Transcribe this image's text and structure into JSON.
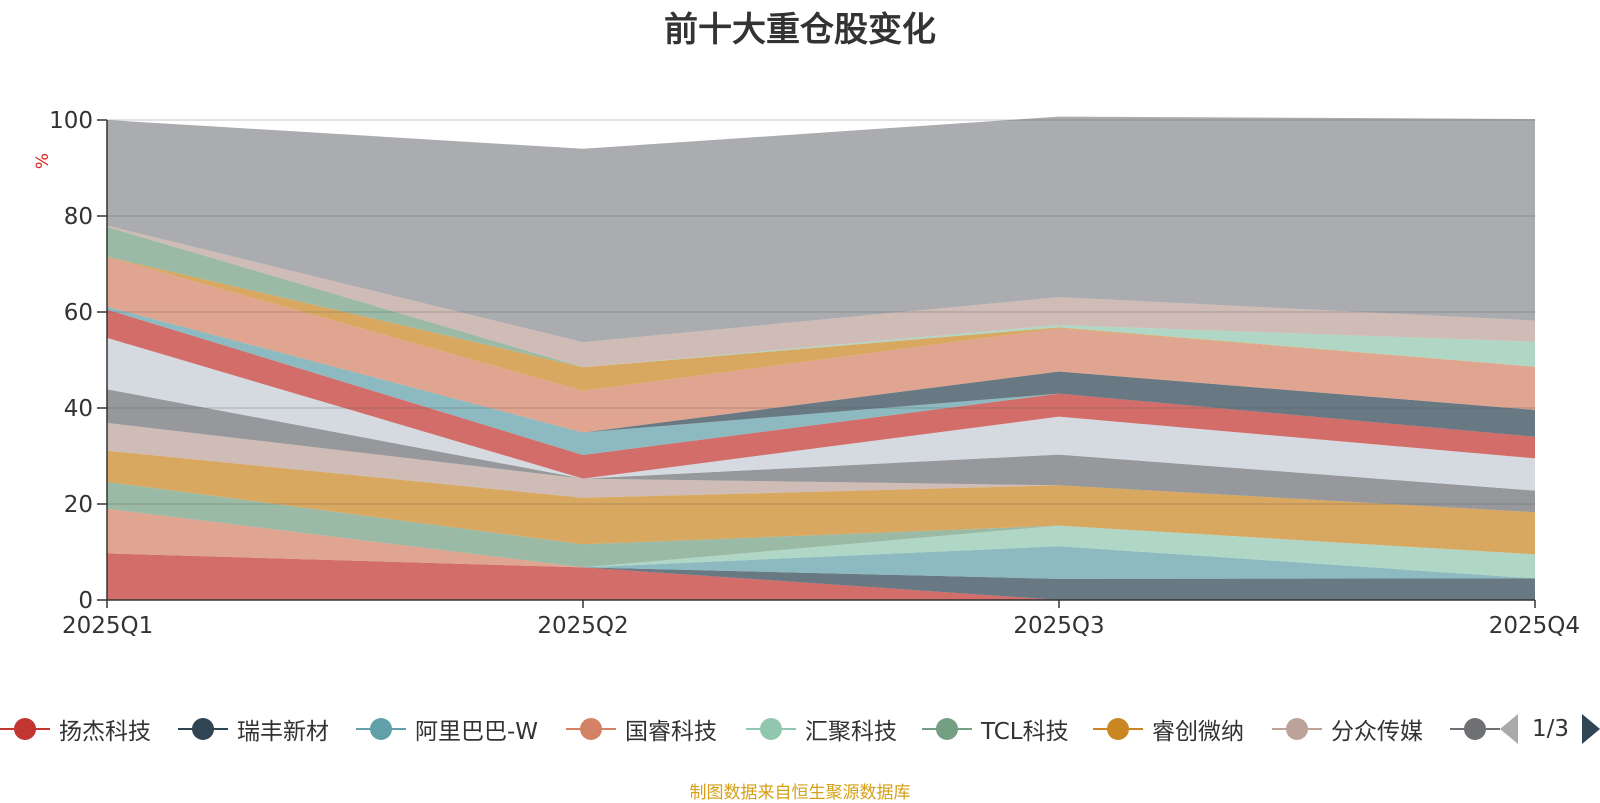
{
  "chart_data": {
    "type": "area",
    "title": "前十大重仓股变化",
    "ylabel": "%",
    "xlabel": "",
    "ylim": [
      0,
      100
    ],
    "yticks": [
      0,
      20,
      40,
      60,
      80,
      100
    ],
    "categories": [
      "2025Q1",
      "2025Q2",
      "2025Q3",
      "2025Q4"
    ],
    "stacked": true,
    "grid": true,
    "legend_position": "bottom",
    "legend_page": "1/3",
    "source_note": "制图数据来自恒生聚源数据库",
    "series": [
      {
        "name": "扬杰科技",
        "color": "#c23531",
        "values": [
          9.7,
          6.8,
          0,
          0
        ]
      },
      {
        "name": "瑞丰新材",
        "color": "#2f4554",
        "values": [
          0,
          0,
          4.4,
          4.5
        ]
      },
      {
        "name": "阿里巴巴-W",
        "color": "#61a0a8",
        "values": [
          0,
          0,
          6.8,
          0
        ]
      },
      {
        "name": "国睿科技",
        "color": "#d48265",
        "values": [
          9.3,
          0,
          0,
          0
        ]
      },
      {
        "name": "汇聚科技",
        "color": "#91c7ae",
        "values": [
          0,
          0,
          4.3,
          5.0
        ]
      },
      {
        "name": "TCL科技",
        "color": "#749f83",
        "values": [
          5.6,
          4.8,
          0,
          0
        ]
      },
      {
        "name": "睿创微纳",
        "color": "#ca8622",
        "values": [
          6.5,
          9.7,
          8.4,
          8.8
        ]
      },
      {
        "name": "分众传媒",
        "color": "#bda29a",
        "values": [
          5.8,
          4.0,
          0,
          0
        ]
      },
      {
        "name": "",
        "color": "#6e7074",
        "values": [
          7.0,
          0,
          6.4,
          4.5
        ]
      },
      {
        "name": "",
        "color": "#c4ccd3",
        "values": [
          10.7,
          0,
          7.9,
          6.7
        ]
      },
      {
        "name": "",
        "color": "#c23531",
        "values": [
          5.9,
          4.9,
          4.8,
          4.5
        ]
      },
      {
        "name": "",
        "color": "#61a0a8",
        "values": [
          0.6,
          4.7,
          0,
          0
        ]
      },
      {
        "name": "",
        "color": "#2f4554",
        "values": [
          0,
          0,
          4.6,
          5.6
        ]
      },
      {
        "name": "",
        "color": "#d48265",
        "values": [
          10.4,
          8.7,
          9.0,
          9.0
        ]
      },
      {
        "name": "",
        "color": "#ca8622",
        "values": [
          0,
          4.9,
          0.2,
          0
        ]
      },
      {
        "name": "",
        "color": "#91c7ae",
        "values": [
          0,
          0,
          0.5,
          5.2
        ]
      },
      {
        "name": "",
        "color": "#749f83",
        "values": [
          6.2,
          0,
          0,
          0
        ]
      },
      {
        "name": "",
        "color": "#bda29a",
        "values": [
          0.3,
          5.2,
          5.8,
          4.4
        ]
      },
      {
        "name": "",
        "color": "#8a8c90",
        "values": [
          22.0,
          40.3,
          37.6,
          42.0
        ]
      }
    ]
  }
}
